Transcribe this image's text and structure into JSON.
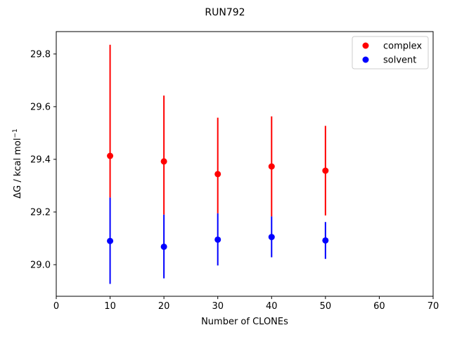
{
  "chart_data": {
    "type": "scatter",
    "title": "RUN792",
    "xlabel": "Number of CLONEs",
    "ylabel_main": "ΔG / kcal mol",
    "ylabel_sup": "−1",
    "xlim": [
      0,
      70
    ],
    "ylim": [
      28.88,
      29.885
    ],
    "xticks": [
      0,
      10,
      20,
      30,
      40,
      50,
      60,
      70
    ],
    "xtick_labels": [
      "0",
      "10",
      "20",
      "30",
      "40",
      "50",
      "60",
      "70"
    ],
    "yticks": [
      29.0,
      29.2,
      29.4,
      29.6,
      29.8
    ],
    "ytick_labels": [
      "29.0",
      "29.2",
      "29.4",
      "29.6",
      "29.8"
    ],
    "grid": false,
    "legend_position": "top-right",
    "series": [
      {
        "name": "complex",
        "color": "#ff0000",
        "x": [
          10,
          20,
          30,
          40,
          50
        ],
        "y": [
          29.413,
          29.392,
          29.344,
          29.373,
          29.357
        ],
        "err_low": [
          29.255,
          29.19,
          29.195,
          29.183,
          29.187
        ],
        "err_high": [
          29.835,
          29.642,
          29.558,
          29.563,
          29.527
        ]
      },
      {
        "name": "solvent",
        "color": "#0000ff",
        "x": [
          10,
          20,
          30,
          40,
          50
        ],
        "y": [
          29.09,
          29.068,
          29.095,
          29.105,
          29.092
        ],
        "err_low": [
          28.927,
          28.948,
          28.997,
          29.028,
          29.022
        ],
        "err_high": [
          29.255,
          29.19,
          29.195,
          29.183,
          29.162
        ]
      }
    ]
  }
}
